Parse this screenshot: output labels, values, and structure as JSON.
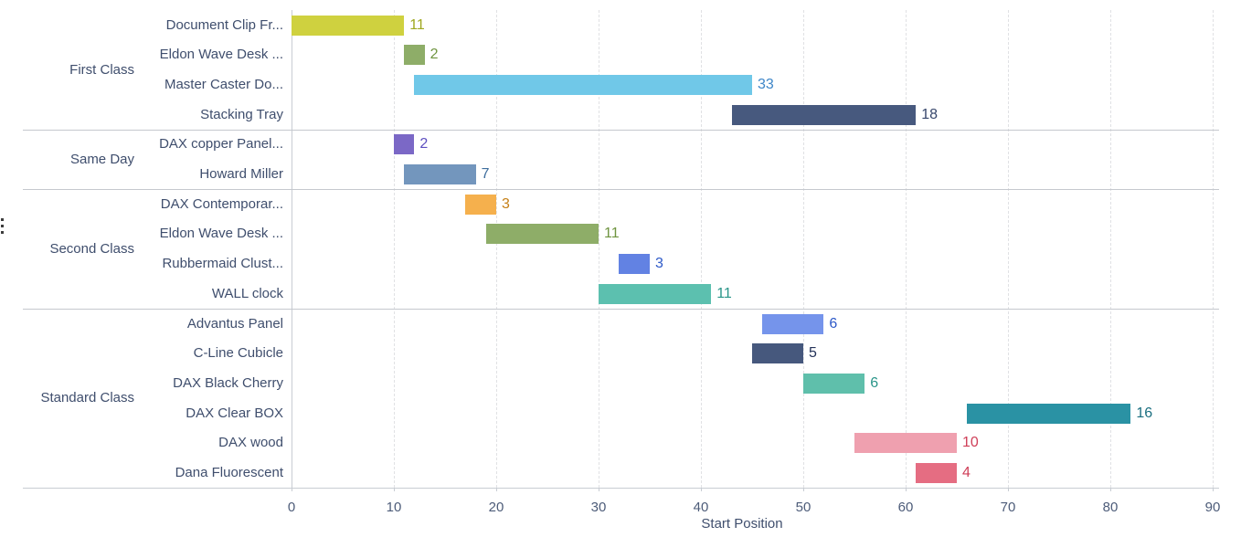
{
  "chart_data": {
    "type": "bar",
    "subtype": "horizontal-gantt",
    "title": "",
    "xlabel": "Start Position",
    "ylabel": "",
    "x_ticks": [
      0,
      10,
      20,
      30,
      40,
      50,
      60,
      70,
      80,
      90
    ],
    "xlim": [
      0,
      90
    ],
    "grid": "vertical-dashed",
    "groups": [
      {
        "label": "First Class",
        "items": [
          {
            "label": "Document Clip Fr...",
            "start": 0,
            "end": 11,
            "value": 11,
            "bar_color": "#cfd13f",
            "value_color": "#9fa81f"
          },
          {
            "label": "Eldon Wave Desk ...",
            "start": 11,
            "end": 13,
            "value": 2,
            "bar_color": "#8ead68",
            "value_color": "#6f9440"
          },
          {
            "label": "Master Caster Do...",
            "start": 12,
            "end": 45,
            "value": 33,
            "bar_color": "#70c8e8",
            "value_color": "#3e86c8"
          },
          {
            "label": "Stacking Tray",
            "start": 43,
            "end": 61,
            "value": 18,
            "bar_color": "#47597e",
            "value_color": "#36466b"
          }
        ]
      },
      {
        "label": "Same Day",
        "items": [
          {
            "label": "DAX copper Panel...",
            "start": 10,
            "end": 12,
            "value": 2,
            "bar_color": "#7b68c6",
            "value_color": "#5d4fc0"
          },
          {
            "label": "Howard Miller",
            "start": 11,
            "end": 18,
            "value": 7,
            "bar_color": "#7396bd",
            "value_color": "#3e6e9e"
          }
        ]
      },
      {
        "label": "Second Class",
        "items": [
          {
            "label": "DAX Contemporar...",
            "start": 17,
            "end": 20,
            "value": 3,
            "bar_color": "#f5b04d",
            "value_color": "#c57f16"
          },
          {
            "label": "Eldon Wave Desk ...",
            "start": 19,
            "end": 30,
            "value": 11,
            "bar_color": "#8ead68",
            "value_color": "#6f9440"
          },
          {
            "label": "Rubbermaid Clust...",
            "start": 32,
            "end": 35,
            "value": 3,
            "bar_color": "#6282e3",
            "value_color": "#2d59c8"
          },
          {
            "label": "WALL clock",
            "start": 30,
            "end": 41,
            "value": 11,
            "bar_color": "#5cc0af",
            "value_color": "#2a9589"
          }
        ]
      },
      {
        "label": "Standard Class",
        "items": [
          {
            "label": "Advantus Panel",
            "start": 46,
            "end": 52,
            "value": 6,
            "bar_color": "#7594eb",
            "value_color": "#2d59c8"
          },
          {
            "label": "C-Line Cubicle",
            "start": 45,
            "end": 50,
            "value": 5,
            "bar_color": "#46587d",
            "value_color": "#243359"
          },
          {
            "label": "DAX Black Cherry",
            "start": 50,
            "end": 56,
            "value": 6,
            "bar_color": "#5fbfab",
            "value_color": "#2a9589"
          },
          {
            "label": "DAX Clear BOX",
            "start": 66,
            "end": 82,
            "value": 16,
            "bar_color": "#2a92a4",
            "value_color": "#1b6f80"
          },
          {
            "label": "DAX wood",
            "start": 55,
            "end": 65,
            "value": 10,
            "bar_color": "#efa0af",
            "value_color": "#cf3f58"
          },
          {
            "label": "Dana Fluorescent",
            "start": 61,
            "end": 65,
            "value": 4,
            "bar_color": "#e56d82",
            "value_color": "#cf3f58"
          }
        ]
      }
    ]
  },
  "more_options_icon": "vertical-ellipsis"
}
